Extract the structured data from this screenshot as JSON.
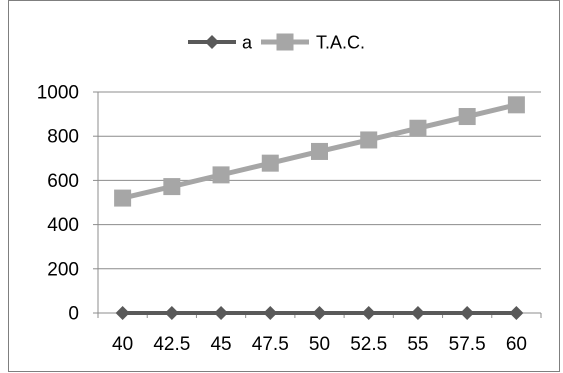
{
  "chart_data": {
    "type": "line",
    "categories": [
      "40",
      "42.5",
      "45",
      "47.5",
      "50",
      "52.5",
      "55",
      "57.5",
      "60"
    ],
    "series": [
      {
        "name": "a",
        "color": "#595959",
        "marker": "diamond",
        "values": [
          0,
          0,
          0,
          0,
          0,
          0,
          0,
          0,
          0
        ]
      },
      {
        "name": "T.A.C.",
        "color": "#a6a6a6",
        "marker": "square",
        "values": [
          520,
          572,
          625,
          678,
          731,
          783,
          836,
          889,
          942
        ]
      }
    ],
    "y_ticks": [
      0,
      200,
      400,
      600,
      800,
      1000
    ],
    "ylim": [
      0,
      1000
    ],
    "title": "",
    "xlabel": "",
    "ylabel": "",
    "grid": true,
    "legend_position": "top"
  }
}
